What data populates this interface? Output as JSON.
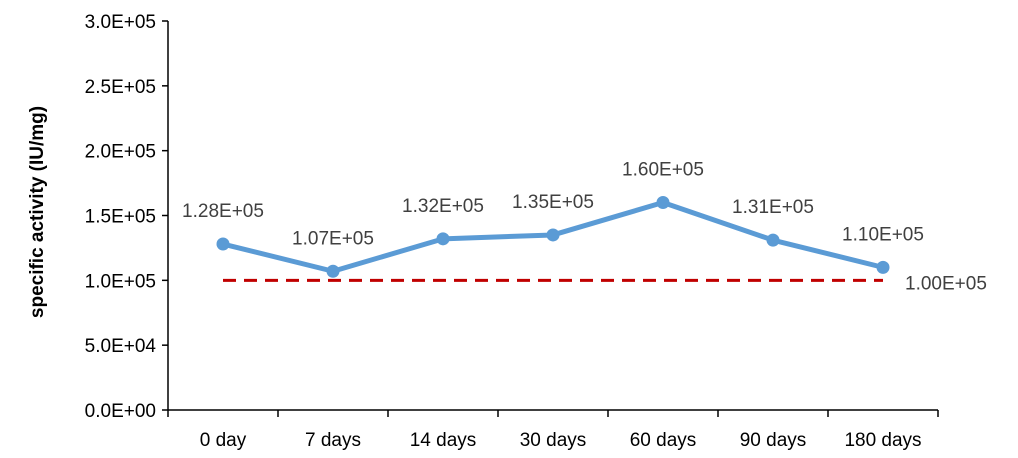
{
  "chart_data": {
    "type": "line",
    "title": "",
    "xlabel": "",
    "ylabel": "specific activity (IU/mg)",
    "categories": [
      "0 day",
      "7 days",
      "14 days",
      "30 days",
      "60 days",
      "90 days",
      "180 days"
    ],
    "series": [
      {
        "values": [
          128000,
          107000,
          132000,
          135000,
          160000,
          131000,
          110000
        ],
        "data_labels": [
          "1.28E+05",
          "1.07E+05",
          "1.32E+05",
          "1.35E+05",
          "1.60E+05",
          "1.31E+05",
          "1.10E+05"
        ],
        "color": "#5b9bd5",
        "marker": "circle"
      }
    ],
    "reference_line": {
      "value": 100000,
      "label": "1.00E+05",
      "color": "#c00000",
      "style": "dashed"
    },
    "ylim": [
      0,
      300000
    ],
    "yticks": [
      0,
      50000,
      100000,
      150000,
      200000,
      250000,
      300000
    ],
    "ytick_labels": [
      "0.0E+00",
      "5.0E+04",
      "1.0E+05",
      "1.5E+05",
      "2.0E+05",
      "2.5E+05",
      "3.0E+05"
    ],
    "grid": false,
    "legend": "none"
  }
}
